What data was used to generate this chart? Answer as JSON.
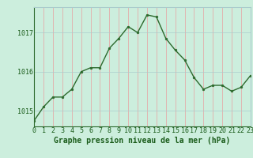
{
  "x": [
    0,
    1,
    2,
    3,
    4,
    5,
    6,
    7,
    8,
    9,
    10,
    11,
    12,
    13,
    14,
    15,
    16,
    17,
    18,
    19,
    20,
    21,
    22,
    23
  ],
  "y": [
    1014.75,
    1015.1,
    1015.35,
    1015.35,
    1015.55,
    1016.0,
    1016.1,
    1016.1,
    1016.6,
    1016.85,
    1017.15,
    1017.0,
    1017.45,
    1017.4,
    1016.85,
    1016.55,
    1016.3,
    1015.85,
    1015.55,
    1015.65,
    1015.65,
    1015.5,
    1015.6,
    1015.9
  ],
  "ylim": [
    1014.6,
    1017.65
  ],
  "yticks": [
    1015,
    1016,
    1017
  ],
  "xticks": [
    0,
    1,
    2,
    3,
    4,
    5,
    6,
    7,
    8,
    9,
    10,
    11,
    12,
    13,
    14,
    15,
    16,
    17,
    18,
    19,
    20,
    21,
    22,
    23
  ],
  "xlabel": "Graphe pression niveau de la mer (hPa)",
  "line_color": "#2d6a2d",
  "marker_color": "#2d6a2d",
  "bg_color": "#cceedd",
  "grid_color_v": "#aacccc",
  "grid_color_h": "#f08080",
  "tick_label_color": "#1a5c1a",
  "xlabel_color": "#1a5c1a",
  "line_width": 1.0,
  "marker_size": 2.0,
  "tick_fontsize": 6.0,
  "xlabel_fontsize": 7.0
}
